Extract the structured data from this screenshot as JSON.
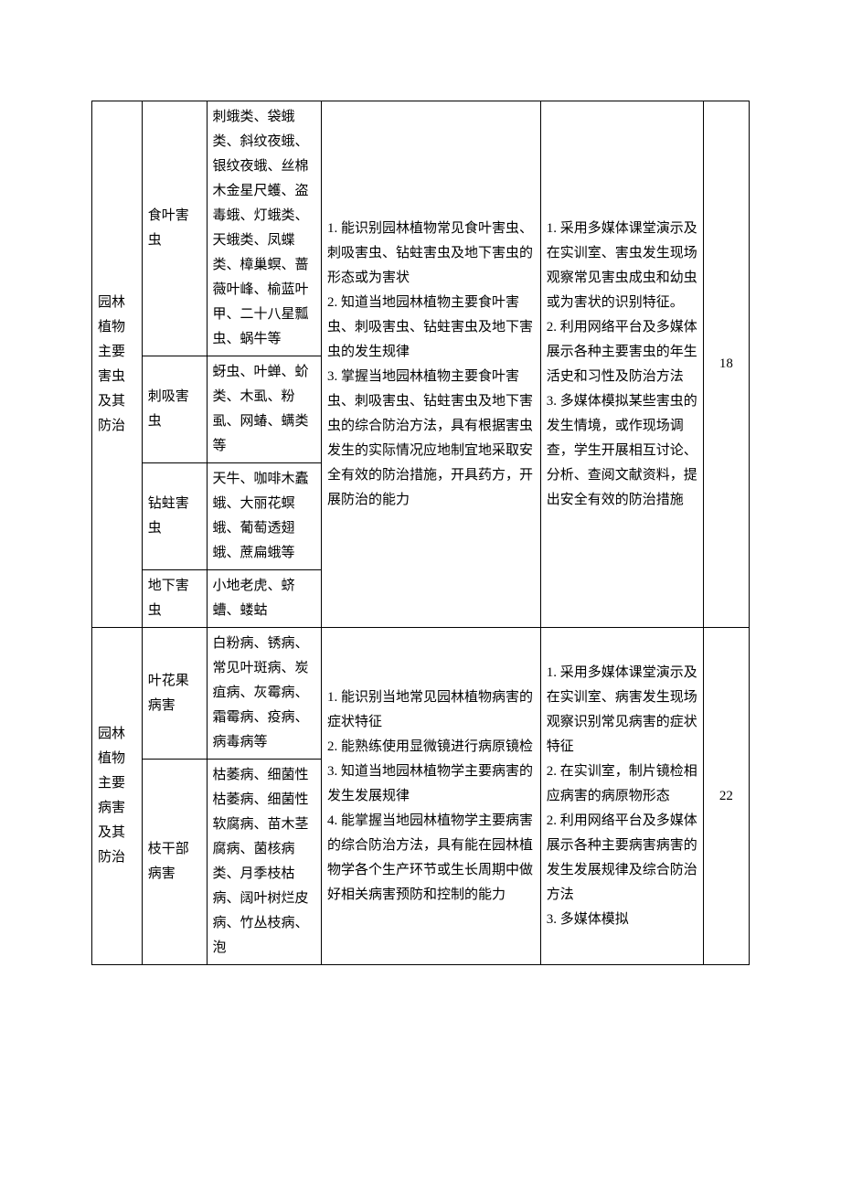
{
  "table1": {
    "section_title": "园林植物主要害虫及其防治",
    "hours": "18",
    "ability_req": "1. 能识别园林植物常见食叶害虫、刺吸害虫、钻蛀害虫及地下害虫的形态或为害状\n2. 知道当地园林植物主要食叶害虫、刺吸害虫、钻蛀害虫及地下害虫的发生规律\n3. 掌握当地园林植物主要食叶害虫、刺吸害虫、钻蛀害虫及地下害虫的综合防治方法，具有根据害虫发生的实际情况应地制宜地采取安全有效的防治措施，开具药方，开展防治的能力",
    "teaching_method": "1. 采用多媒体课堂演示及在实训室、害虫发生现场观察常见害虫成虫和幼虫或为害状的识别特征。\n2. 利用网络平台及多媒体展示各种主要害虫的年生活史和习性及防治方法\n3. 多媒体模拟某些害虫的发生情境，或作现场调查，学生开展相互讨论、分析、查阅文献资料，提出安全有效的防治措施",
    "rows": [
      {
        "subcategory": "食叶害虫",
        "content": "刺蛾类、袋蛾类、斜纹夜蛾、银纹夜蛾、丝棉木金星尺蠖、盗毒蛾、灯蛾类、天蛾类、凤蝶类、樟巢螟、蔷薇叶峰、榆蓝叶甲、二十八星瓢虫、蜗牛等"
      },
      {
        "subcategory": "刺吸害虫",
        "content": "蚜虫、叶蝉、蚧类、木虱、粉虱、网蝽、螨类等"
      },
      {
        "subcategory": "钻蛀害虫",
        "content": "天牛、咖啡木蠹蛾、大丽花螟蛾、葡萄透翅蛾、蔗扁蛾等"
      },
      {
        "subcategory": "地下害虫",
        "content": "小地老虎、蛴螬、蝼蛄"
      }
    ]
  },
  "table2": {
    "section_title": "园林植物主要病害及其防治",
    "hours": "22",
    "ability_req": "1. 能识别当地常见园林植物病害的症状特征\n2. 能熟练使用显微镜进行病原镜检\n3. 知道当地园林植物学主要病害的发生发展规律\n4. 能掌握当地园林植物学主要病害的综合防治方法，具有能在园林植物学各个生产环节或生长周期中做好相关病害预防和控制的能力",
    "teaching_method": "1. 采用多媒体课堂演示及在实训室、病害发生现场观察识别常见病害的症状特征\n2. 在实训室，制片镜检相应病害的病原物形态\n2. 利用网络平台及多媒体展示各种主要病害病害的发生发展规律及综合防治方法\n3. 多媒体模拟",
    "rows": [
      {
        "subcategory": "叶花果病害",
        "content": "白粉病、锈病、常见叶斑病、炭疽病、灰霉病、霜霉病、疫病、病毒病等"
      },
      {
        "subcategory": "枝干部病害",
        "content": "枯萎病、细菌性枯萎病、细菌性软腐病、苗木茎腐病、菌核病类、月季枝枯病、阔叶树烂皮病、竹丛枝病、泡"
      }
    ]
  }
}
